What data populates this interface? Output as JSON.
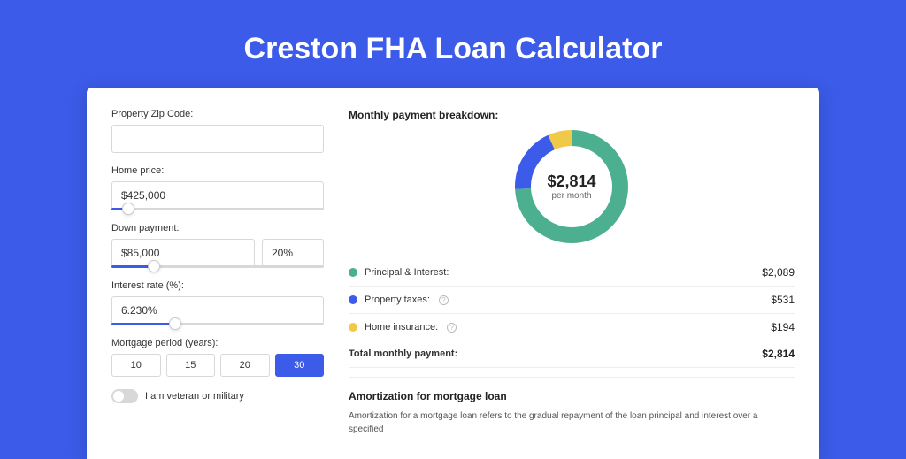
{
  "page": {
    "title": "Creston FHA Loan Calculator"
  },
  "colors": {
    "brand": "#3b5be8",
    "principal": "#4caf8f",
    "taxes": "#3b5be8",
    "insurance": "#f0c948",
    "card_bg": "#ffffff",
    "border": "#d8d8d8",
    "text": "#333333"
  },
  "form": {
    "zip": {
      "label": "Property Zip Code:",
      "value": ""
    },
    "home_price": {
      "label": "Home price:",
      "value": "$425,000",
      "slider_pct": 8
    },
    "down_payment": {
      "label": "Down payment:",
      "amount": "$85,000",
      "percent": "20%",
      "slider_pct": 20
    },
    "interest": {
      "label": "Interest rate (%):",
      "value": "6.230%",
      "slider_pct": 30
    },
    "period": {
      "label": "Mortgage period (years):",
      "options": [
        "10",
        "15",
        "20",
        "30"
      ],
      "active_index": 3
    },
    "veteran": {
      "label": "I am veteran or military",
      "checked": false
    }
  },
  "breakdown": {
    "title": "Monthly payment breakdown:",
    "donut": {
      "center_amount": "$2,814",
      "center_sub": "per month",
      "size": 128,
      "stroke_width": 18,
      "slices": [
        {
          "key": "principal",
          "value": 2089,
          "color": "#4caf8f"
        },
        {
          "key": "taxes",
          "value": 531,
          "color": "#3b5be8"
        },
        {
          "key": "insurance",
          "value": 194,
          "color": "#f0c948"
        }
      ]
    },
    "items": [
      {
        "label": "Principal & Interest:",
        "value": "$2,089",
        "color": "#4caf8f",
        "info": false
      },
      {
        "label": "Property taxes:",
        "value": "$531",
        "color": "#3b5be8",
        "info": true
      },
      {
        "label": "Home insurance:",
        "value": "$194",
        "color": "#f0c948",
        "info": true
      }
    ],
    "total": {
      "label": "Total monthly payment:",
      "value": "$2,814"
    }
  },
  "amortization": {
    "title": "Amortization for mortgage loan",
    "text": "Amortization for a mortgage loan refers to the gradual repayment of the loan principal and interest over a specified"
  }
}
